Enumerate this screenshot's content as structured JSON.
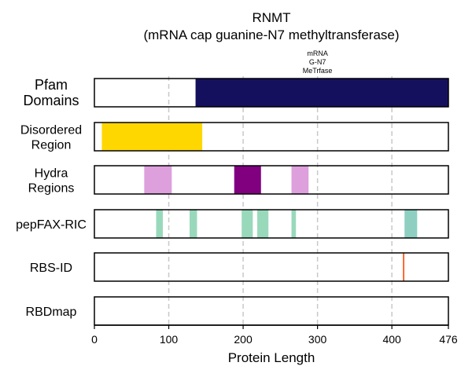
{
  "chart_data": {
    "type": "bar",
    "title": "RNMT",
    "subtitle": "(mRNA cap guanine-N7 methyltransferase)",
    "xlabel": "Protein Length",
    "xlim": [
      0,
      476
    ],
    "xticks": [
      "0",
      "100",
      "200",
      "300",
      "400",
      "476"
    ],
    "xtick_values": [
      0,
      100,
      200,
      300,
      400,
      476
    ],
    "grid": "vertical dashed at 100, 200, 300, 400",
    "tracks": [
      {
        "label": "Pfam\nDomains",
        "color": "#15105e",
        "annotation": "mRNA\nG-N7\nMeTrfase",
        "annotation_center": 300,
        "segments": [
          {
            "start": 136,
            "end": 476
          }
        ]
      },
      {
        "label": "Disordered\nRegion",
        "color": "#ffd700",
        "segments": [
          {
            "start": 10,
            "end": 145
          }
        ]
      },
      {
        "label": "Hydra\nRegions",
        "segments": [
          {
            "start": 67,
            "end": 104,
            "color": "#dda0dd"
          },
          {
            "start": 188,
            "end": 224,
            "color": "#800080"
          },
          {
            "start": 265,
            "end": 288,
            "color": "#dda0dd"
          }
        ]
      },
      {
        "label": "pepFAX-RIC",
        "color": "#99d9bb",
        "segments": [
          {
            "start": 83,
            "end": 92
          },
          {
            "start": 128,
            "end": 138
          },
          {
            "start": 198,
            "end": 213
          },
          {
            "start": 219,
            "end": 234
          },
          {
            "start": 265,
            "end": 271
          },
          {
            "start": 417,
            "end": 434,
            "color": "#8ecfc2"
          }
        ]
      },
      {
        "label": "RBS-ID",
        "color": "#ff4500",
        "segments": [
          {
            "start": 415,
            "end": 416
          }
        ]
      },
      {
        "label": "RBDmap",
        "segments": []
      }
    ]
  }
}
